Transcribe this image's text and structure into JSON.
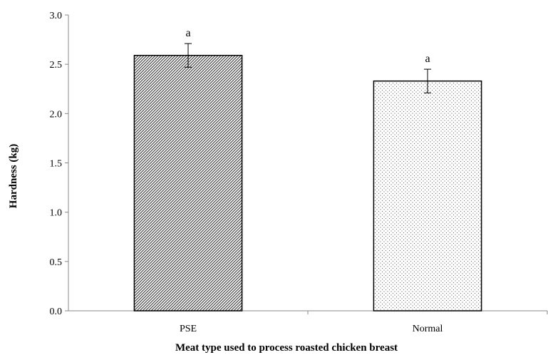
{
  "chart_data": {
    "type": "bar",
    "categories": [
      "PSE",
      "Normal"
    ],
    "values": [
      2.59,
      2.33
    ],
    "error": [
      0.12,
      0.12
    ],
    "labels": [
      "a",
      "a"
    ],
    "patterns": [
      "diagonal-hatch",
      "dots"
    ],
    "xlabel": "Meat type used to process roasted chicken breast",
    "ylabel": "Hardness (kg)",
    "ylim": [
      0,
      3.0
    ],
    "yticks": [
      "0.0",
      "0.5",
      "1.0",
      "1.5",
      "2.0",
      "2.5",
      "3.0"
    ],
    "grid": false,
    "legend": "none"
  }
}
